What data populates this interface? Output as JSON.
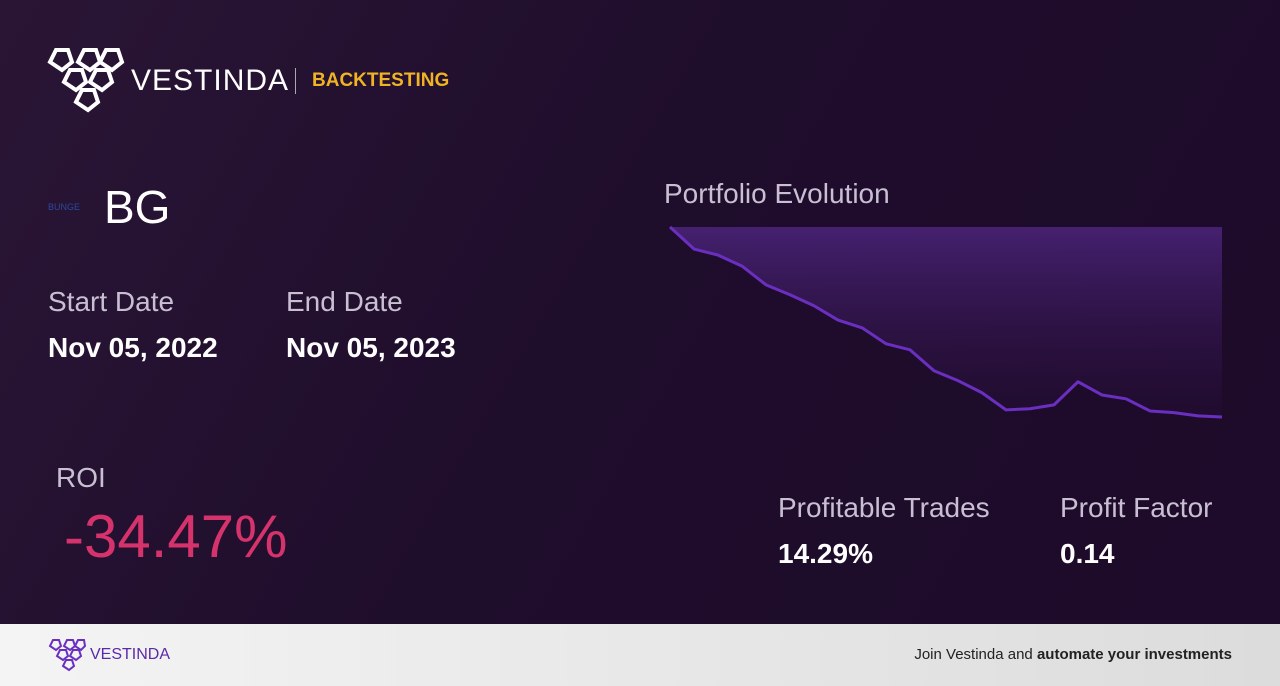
{
  "header": {
    "brand": "VESTINDA",
    "section": "BACKTESTING"
  },
  "stock": {
    "logo_text": "BUNGE",
    "ticker": "BG"
  },
  "dates": {
    "start_label": "Start Date",
    "start": "Nov 05, 2022",
    "end_label": "End Date",
    "end": "Nov 05, 2023"
  },
  "roi": {
    "label": "ROI",
    "value": "-34.47%"
  },
  "stats": [
    {
      "label": "Profitable Trades",
      "value": "14.29%"
    },
    {
      "label": "Profit Factor",
      "value": "0.14"
    }
  ],
  "chart_data": {
    "type": "line",
    "title": "Portfolio Evolution",
    "color": "#6a2fc0",
    "values": [
      100,
      96.0,
      94.9,
      92.9,
      89.5,
      87.7,
      85.7,
      83.1,
      81.7,
      78.8,
      77.7,
      73.9,
      72.1,
      69.9,
      66.8,
      67.0,
      67.7,
      71.9,
      69.5,
      68.8,
      66.6,
      66.3,
      65.7,
      65.5
    ]
  },
  "footer": {
    "brand": "VESTINDA",
    "cta_prefix": "Join Vestinda and",
    "cta_bold": "automate your investments"
  }
}
